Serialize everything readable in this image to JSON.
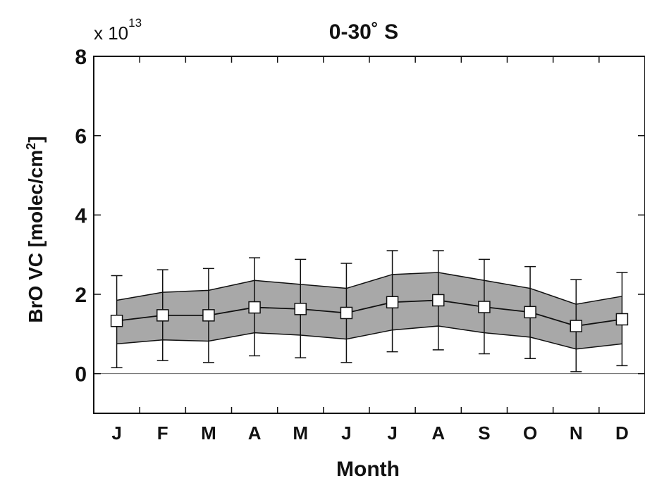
{
  "chart_data": {
    "type": "line",
    "title": "0-30˚ S",
    "exponent_base": "x 10",
    "exponent_power": "13",
    "xlabel": "Month",
    "ylabel": "BrO VC [molec/cm",
    "ylabel_sup": "2",
    "ylabel_end": "]",
    "categories": [
      "J",
      "F",
      "M",
      "A",
      "M",
      "J",
      "J",
      "A",
      "S",
      "O",
      "N",
      "D"
    ],
    "ylim": [
      -1,
      8
    ],
    "yticks": [
      0,
      2,
      4,
      6,
      8
    ],
    "grid": false,
    "zero_line": 0,
    "series": [
      {
        "values": [
          1.33,
          1.47,
          1.47,
          1.67,
          1.63,
          1.53,
          1.8,
          1.85,
          1.68,
          1.55,
          1.2,
          1.37
        ],
        "band_upper": [
          1.85,
          2.05,
          2.1,
          2.35,
          2.25,
          2.15,
          2.5,
          2.55,
          2.35,
          2.15,
          1.75,
          1.95
        ],
        "band_lower": [
          0.75,
          0.85,
          0.82,
          1.03,
          0.97,
          0.87,
          1.1,
          1.2,
          1.03,
          0.92,
          0.62,
          0.75
        ],
        "error_upper": [
          2.47,
          2.62,
          2.65,
          2.92,
          2.88,
          2.78,
          3.1,
          3.1,
          2.88,
          2.7,
          2.37,
          2.55
        ],
        "error_lower": [
          0.15,
          0.33,
          0.28,
          0.45,
          0.4,
          0.28,
          0.55,
          0.6,
          0.5,
          0.38,
          0.05,
          0.2
        ]
      }
    ],
    "colors": {
      "band": "#a8a8a8",
      "line": "#111111",
      "marker_fill": "#ffffff"
    }
  }
}
